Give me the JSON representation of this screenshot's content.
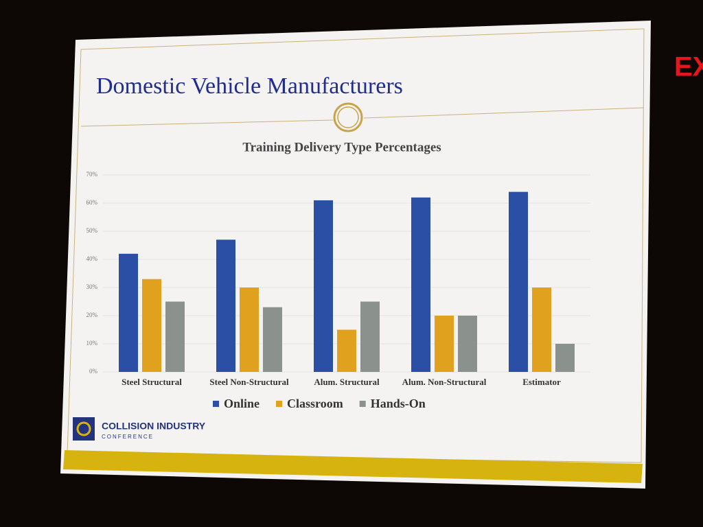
{
  "slide": {
    "title": "Domestic Vehicle Manufacturers",
    "logo_name": "COLLISION INDUSTRY",
    "logo_sub": "CONFERENCE",
    "exit_sign": "EX"
  },
  "chart_data": {
    "type": "bar",
    "title": "Training Delivery Type Percentages",
    "categories": [
      "Steel Structural",
      "Steel Non-Structural",
      "Alum. Structural",
      "Alum. Non-Structural",
      "Estimator"
    ],
    "series": [
      {
        "name": "Online",
        "color": "#2c4fa6",
        "values": [
          42,
          47,
          61,
          62,
          64
        ]
      },
      {
        "name": "Classroom",
        "color": "#e0a21e",
        "values": [
          33,
          30,
          15,
          20,
          30
        ]
      },
      {
        "name": "Hands-On",
        "color": "#8b928d",
        "values": [
          25,
          23,
          25,
          20,
          10
        ]
      }
    ],
    "ylim": [
      0,
      70
    ],
    "yticks": [
      {
        "value": 0,
        "label": "0%"
      },
      {
        "value": 10,
        "label": "10%"
      },
      {
        "value": 20,
        "label": "20%"
      },
      {
        "value": 30,
        "label": "30%"
      },
      {
        "value": 40,
        "label": "40%"
      },
      {
        "value": 50,
        "label": "50%"
      },
      {
        "value": 60,
        "label": "60%"
      },
      {
        "value": 70,
        "label": "70%"
      }
    ],
    "grid": true
  }
}
